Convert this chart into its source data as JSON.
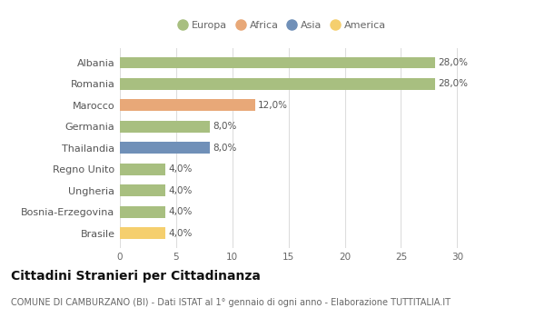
{
  "categories": [
    "Brasile",
    "Bosnia-Erzegovina",
    "Ungheria",
    "Regno Unito",
    "Thailandia",
    "Germania",
    "Marocco",
    "Romania",
    "Albania"
  ],
  "values": [
    4.0,
    4.0,
    4.0,
    4.0,
    8.0,
    8.0,
    12.0,
    28.0,
    28.0
  ],
  "colors": [
    "#f5cf6e",
    "#a8bf80",
    "#a8bf80",
    "#a8bf80",
    "#7090b8",
    "#a8bf80",
    "#e8a878",
    "#a8bf80",
    "#a8bf80"
  ],
  "labels": [
    "4,0%",
    "4,0%",
    "4,0%",
    "4,0%",
    "8,0%",
    "8,0%",
    "12,0%",
    "28,0%",
    "28,0%"
  ],
  "xlim": [
    0,
    32
  ],
  "xticks": [
    0,
    5,
    10,
    15,
    20,
    25,
    30
  ],
  "legend_items": [
    {
      "label": "Europa",
      "color": "#a8bf80"
    },
    {
      "label": "Africa",
      "color": "#e8a878"
    },
    {
      "label": "Asia",
      "color": "#7090b8"
    },
    {
      "label": "America",
      "color": "#f5cf6e"
    }
  ],
  "title": "Cittadini Stranieri per Cittadinanza",
  "subtitle": "COMUNE DI CAMBURZANO (BI) - Dati ISTAT al 1° gennaio di ogni anno - Elaborazione TUTTITALIA.IT",
  "bg_color": "#ffffff",
  "plot_bg_color": "#ffffff",
  "bar_height": 0.55,
  "label_fontsize": 7.5,
  "ytick_fontsize": 8,
  "xtick_fontsize": 7.5,
  "title_fontsize": 10,
  "subtitle_fontsize": 7,
  "legend_fontsize": 8
}
